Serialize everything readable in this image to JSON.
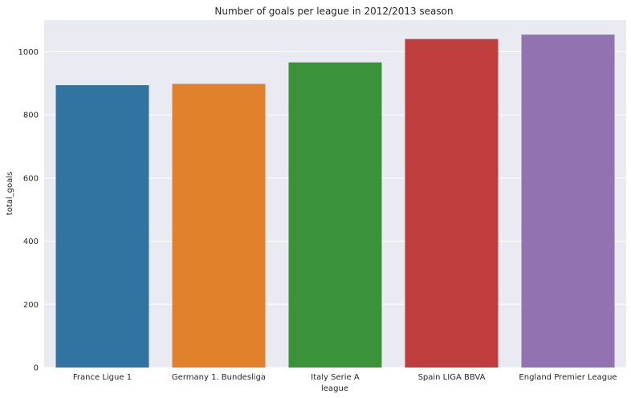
{
  "chart_data": {
    "type": "bar",
    "title": "Number of goals per league in 2012/2013 season",
    "xlabel": "league",
    "ylabel": "total_goals",
    "categories": [
      "France Ligue 1",
      "Germany 1. Bundesliga",
      "Italy Serie A",
      "Spain LIGA BBVA",
      "England Premier League"
    ],
    "values": [
      894,
      898,
      966,
      1040,
      1054
    ],
    "colors": [
      "#3274a1",
      "#e1812c",
      "#3a923a",
      "#c03d3e",
      "#9372b2"
    ],
    "ylim": [
      0,
      1100
    ],
    "yticks": [
      0,
      200,
      400,
      600,
      800,
      1000
    ],
    "grid": true,
    "background": "#eaeaf2"
  }
}
